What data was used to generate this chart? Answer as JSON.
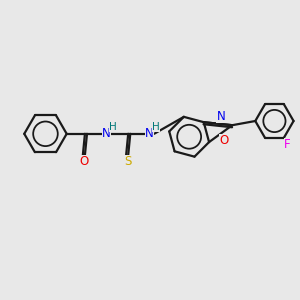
{
  "background_color": "#e8e8e8",
  "bond_color": "#1a1a1a",
  "atom_colors": {
    "N": "#0000ee",
    "O": "#ee0000",
    "S": "#ccaa00",
    "F": "#ee00ee",
    "C": "#1a1a1a",
    "H": "#007777"
  },
  "figsize": [
    3.0,
    3.0
  ],
  "dpi": 100,
  "lw": 1.6,
  "fs": 8.5
}
